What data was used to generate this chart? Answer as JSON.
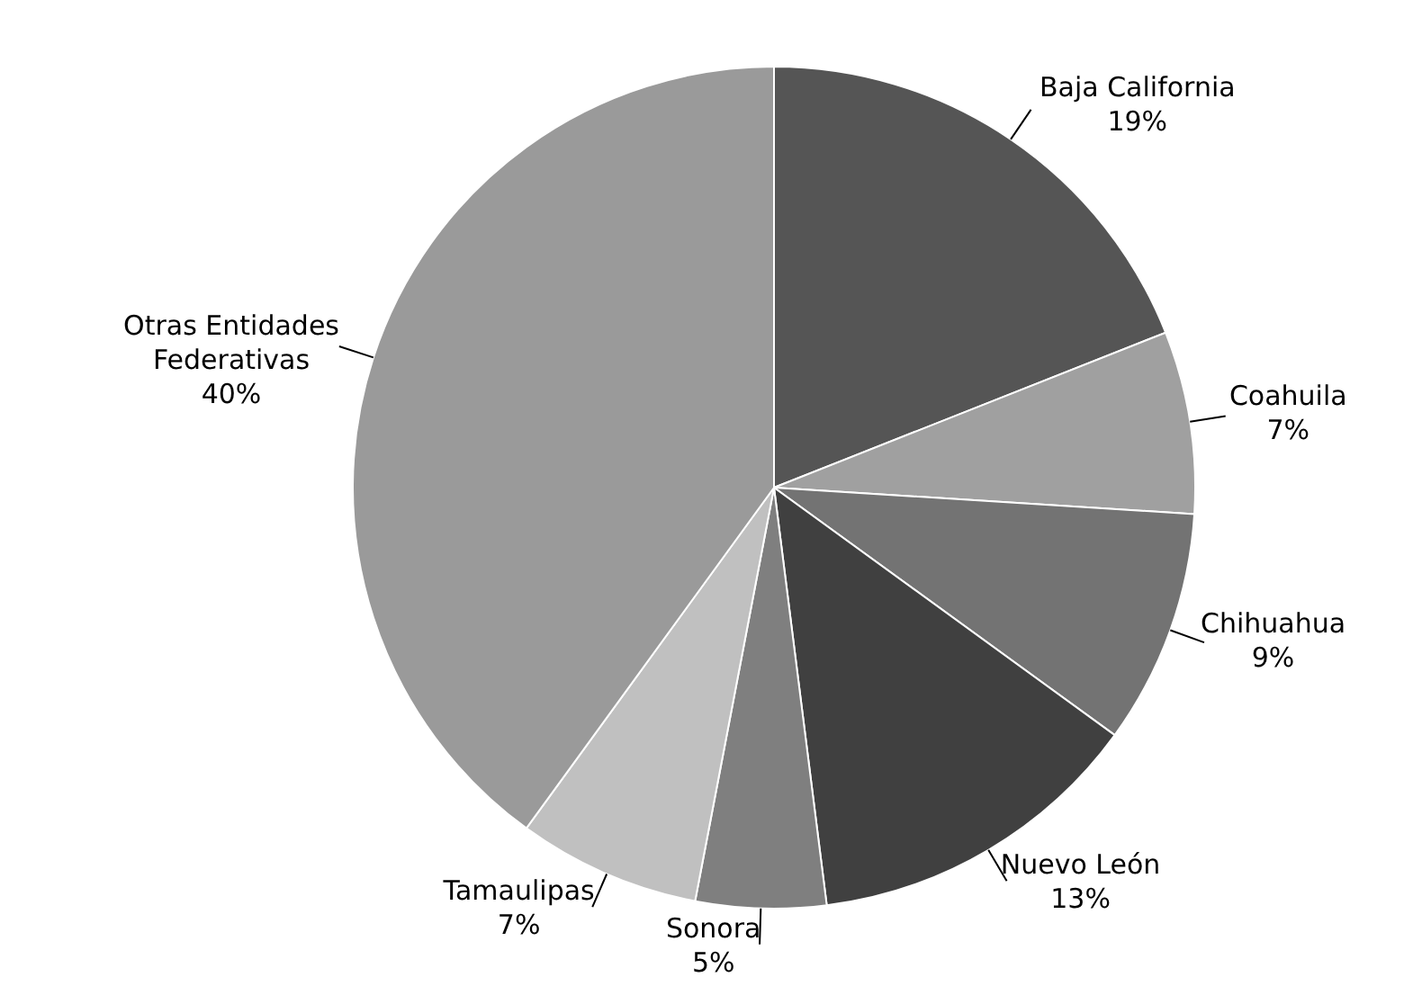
{
  "chart_data": {
    "type": "pie",
    "categories": [
      "Baja California",
      "Coahuila",
      "Chihuahua",
      "Nuevo León",
      "Sonora",
      "Tamaulipas",
      "Otras Entidades Federativas"
    ],
    "values": [
      19,
      7,
      9,
      13,
      5,
      7,
      40
    ],
    "value_labels": [
      "19%",
      "7%",
      "9%",
      "13%",
      "5%",
      "7%",
      "40%"
    ],
    "colors": [
      "#555555",
      "#a0a0a0",
      "#737373",
      "#404040",
      "#7f7f7f",
      "#c0c0c0",
      "#9a9a9a"
    ],
    "legend": false
  }
}
